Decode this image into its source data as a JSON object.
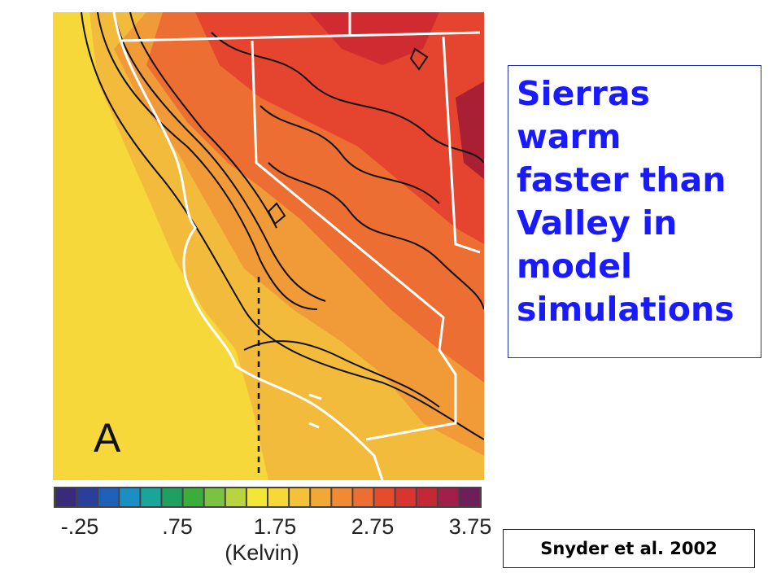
{
  "figure": {
    "panel_label": "A",
    "colorbar_ticks": [
      "-.25",
      ".75",
      "1.75",
      "2.75",
      "3.75"
    ],
    "colorbar_unit": "(Kelvin)"
  },
  "callout": {
    "lines": [
      "Sierras",
      "warm",
      "faster than",
      "Valley in",
      "model",
      "simulations"
    ]
  },
  "citation": "Snyder et al. 2002"
}
